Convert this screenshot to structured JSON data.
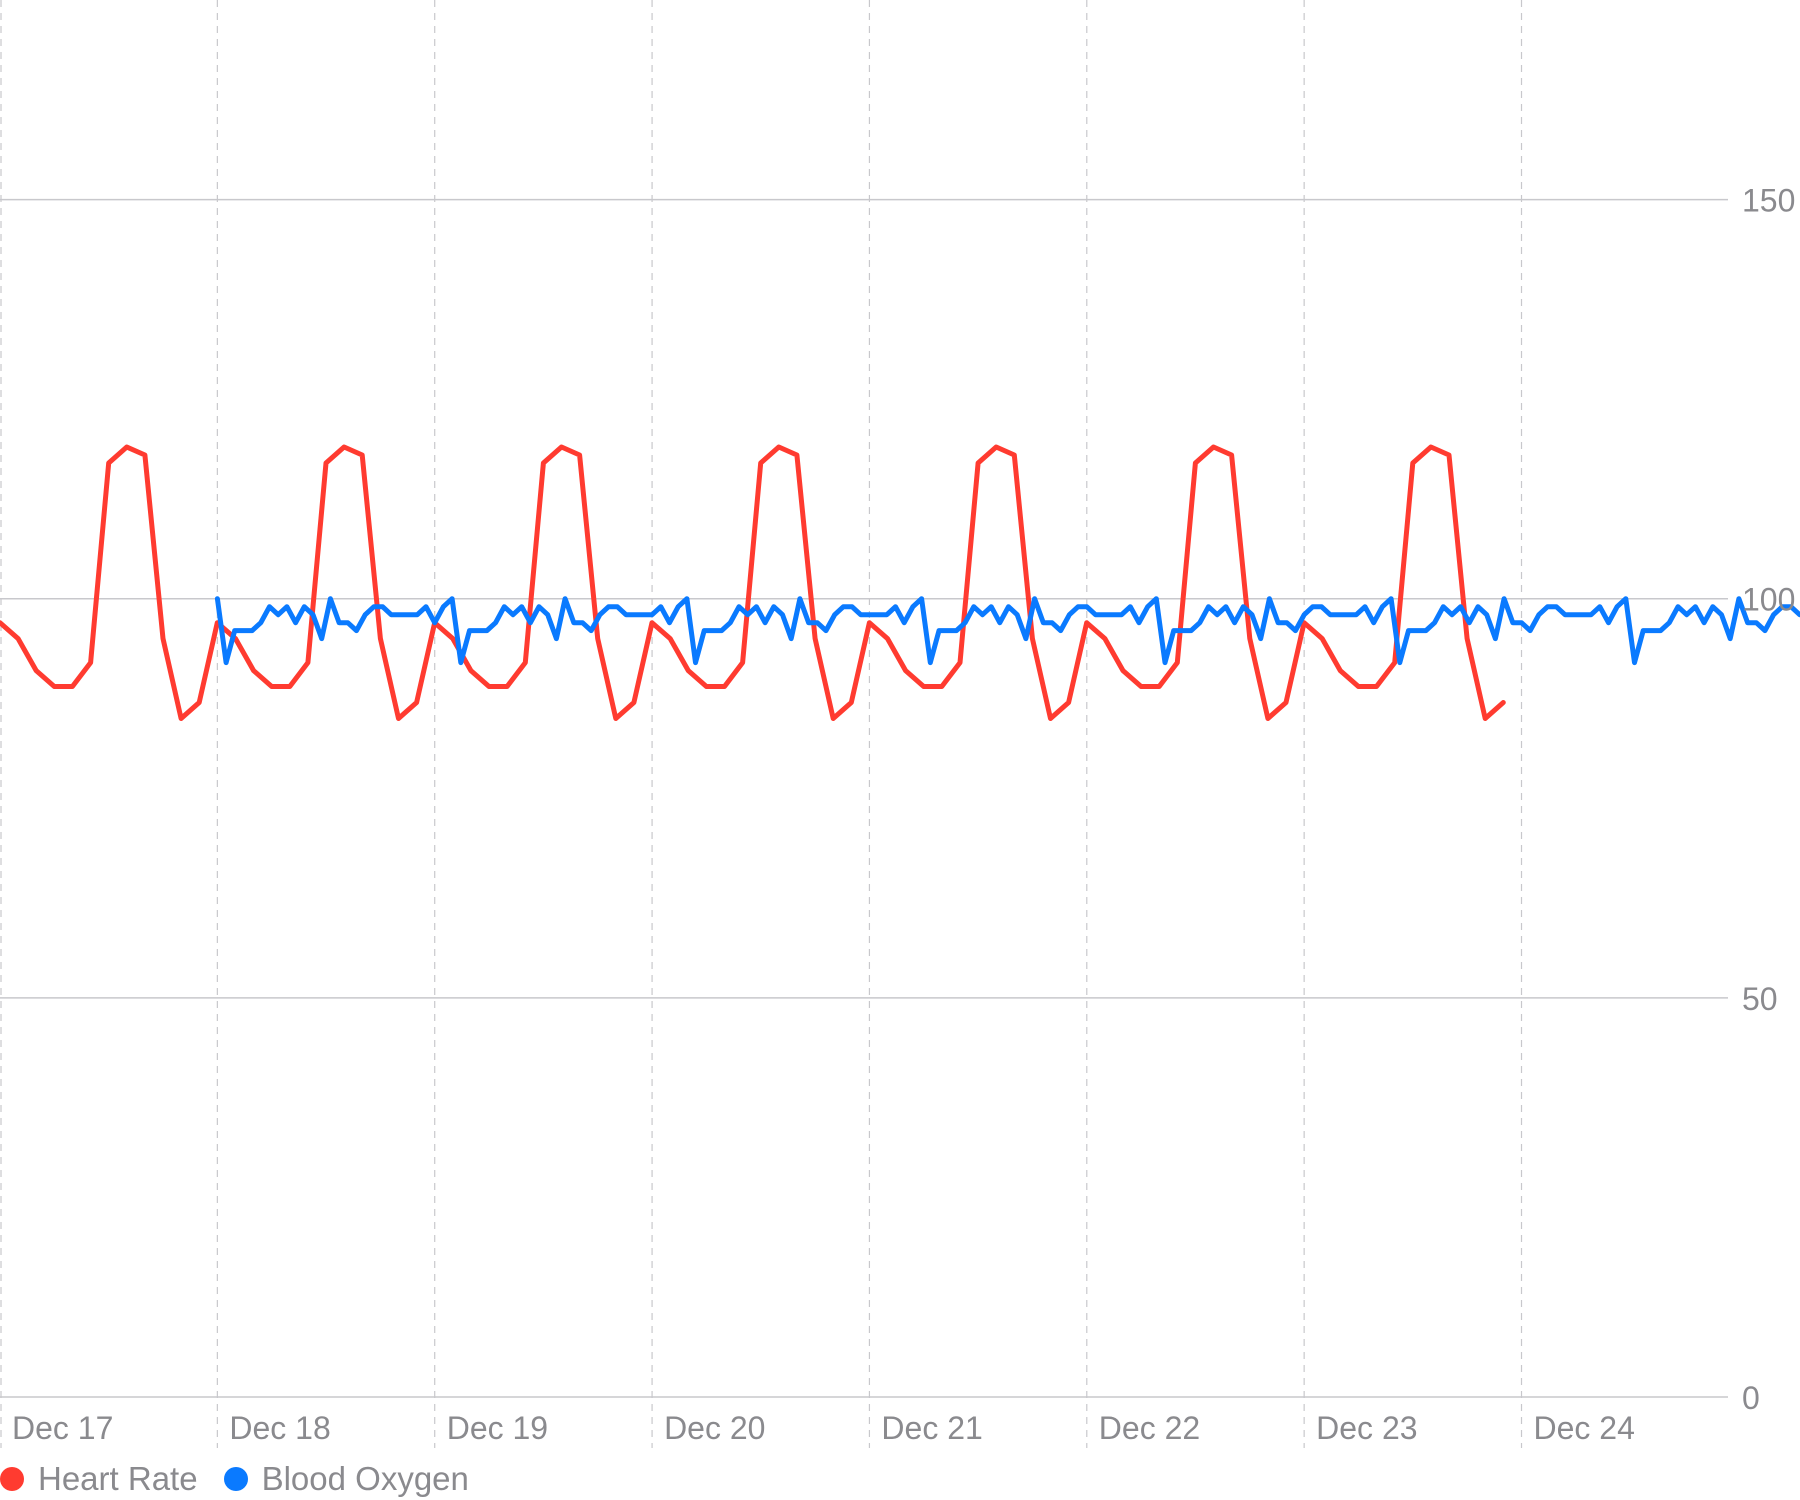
{
  "chart_data": {
    "type": "line",
    "x_unit": "days since Dec 17 00:00",
    "xlim": [
      0,
      7.95
    ],
    "ylim": [
      0,
      175
    ],
    "y_ticks": [
      0,
      50,
      100,
      150
    ],
    "x_ticks": [
      {
        "day": 0,
        "label": "Dec 17"
      },
      {
        "day": 1,
        "label": "Dec 18"
      },
      {
        "day": 2,
        "label": "Dec 19"
      },
      {
        "day": 3,
        "label": "Dec 20"
      },
      {
        "day": 4,
        "label": "Dec 21"
      },
      {
        "day": 5,
        "label": "Dec 22"
      },
      {
        "day": 6,
        "label": "Dec 23"
      },
      {
        "day": 7,
        "label": "Dec 24"
      }
    ],
    "series": [
      {
        "name": "Heart Rate",
        "color": "#ff3b30",
        "x_start": 0,
        "x_step": 0.08333,
        "values": [
          97,
          95,
          91,
          89,
          89,
          92,
          117,
          119,
          118,
          95,
          85,
          87,
          97,
          95,
          91,
          89,
          89,
          92,
          117,
          119,
          118,
          95,
          85,
          87,
          97,
          95,
          91,
          89,
          89,
          92,
          117,
          119,
          118,
          95,
          85,
          87,
          97,
          95,
          91,
          89,
          89,
          92,
          117,
          119,
          118,
          95,
          85,
          87,
          97,
          95,
          91,
          89,
          89,
          92,
          117,
          119,
          118,
          95,
          85,
          87,
          97,
          95,
          91,
          89,
          89,
          92,
          117,
          119,
          118,
          95,
          85,
          87,
          97,
          95,
          91,
          89,
          89,
          92,
          117,
          119,
          118,
          95,
          85,
          87
        ]
      },
      {
        "name": "Blood Oxygen",
        "color": "#0a7aff",
        "x_start": 1.0,
        "x_step": 0.04,
        "values": [
          100,
          92,
          96,
          96,
          96,
          97,
          99,
          98,
          99,
          97,
          99,
          98,
          95,
          100,
          97,
          97,
          96,
          98,
          99,
          99,
          98,
          98,
          98,
          98,
          99,
          97,
          99,
          100,
          92,
          96,
          96,
          96,
          97,
          99,
          98,
          99,
          97,
          99,
          98,
          95,
          100,
          97,
          97,
          96,
          98,
          99,
          99,
          98,
          98,
          98,
          98,
          99,
          97,
          99,
          100,
          92,
          96,
          96,
          96,
          97,
          99,
          98,
          99,
          97,
          99,
          98,
          95,
          100,
          97,
          97,
          96,
          98,
          99,
          99,
          98,
          98,
          98,
          98,
          99,
          97,
          99,
          100,
          92,
          96,
          96,
          96,
          97,
          99,
          98,
          99,
          97,
          99,
          98,
          95,
          100,
          97,
          97,
          96,
          98,
          99,
          99,
          98,
          98,
          98,
          98,
          99,
          97,
          99,
          100,
          92,
          96,
          96,
          96,
          97,
          99,
          98,
          99,
          97,
          99,
          98,
          95,
          100,
          97,
          97,
          96,
          98,
          99,
          99,
          98,
          98,
          98,
          98,
          99,
          97,
          99,
          100,
          92,
          96,
          96,
          96,
          97,
          99,
          98,
          99,
          97,
          99,
          98,
          95,
          100,
          97,
          97,
          96,
          98,
          99,
          99,
          98,
          98,
          98,
          98,
          99,
          97,
          99,
          100,
          92,
          96,
          96,
          96,
          97,
          99,
          98,
          99,
          97,
          99,
          98,
          95,
          100,
          97,
          97,
          96,
          98,
          99,
          99,
          98,
          98,
          98,
          98,
          99,
          97,
          99,
          100,
          92,
          96,
          96,
          97
        ]
      }
    ],
    "legend": [
      {
        "label": "Heart Rate",
        "color": "#ff3b30"
      },
      {
        "label": "Blood Oxygen",
        "color": "#0a7aff"
      }
    ],
    "legend_position": "bottom-left",
    "grid": true
  }
}
